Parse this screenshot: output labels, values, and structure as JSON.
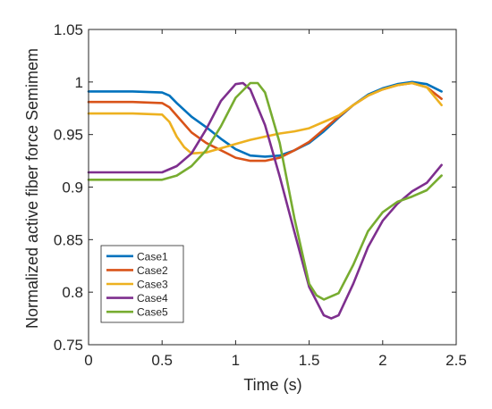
{
  "chart_data": {
    "type": "line",
    "title": "",
    "xlabel": "Time (s)",
    "ylabel": "Normalized active fiber force  Semimem",
    "xlim": [
      0,
      2.5
    ],
    "ylim": [
      0.75,
      1.05
    ],
    "xticks": [
      "0",
      "0.5",
      "1",
      "1.5",
      "2",
      "2.5"
    ],
    "yticks": [
      "0.75",
      "0.8",
      "0.85",
      "0.9",
      "0.95",
      "1",
      "1.05"
    ],
    "grid": false,
    "legend_position": "bottom-left",
    "series": [
      {
        "name": "Case1",
        "color": "#0072BD",
        "x": [
          0,
          0.3,
          0.5,
          0.55,
          0.6,
          0.7,
          0.8,
          0.9,
          1.0,
          1.1,
          1.2,
          1.3,
          1.4,
          1.5,
          1.6,
          1.7,
          1.8,
          1.9,
          2.0,
          2.1,
          2.2,
          2.3,
          2.4
        ],
        "y": [
          0.991,
          0.991,
          0.99,
          0.987,
          0.98,
          0.967,
          0.957,
          0.946,
          0.936,
          0.93,
          0.929,
          0.93,
          0.935,
          0.942,
          0.953,
          0.966,
          0.978,
          0.988,
          0.994,
          0.998,
          1.0,
          0.998,
          0.991
        ]
      },
      {
        "name": "Case2",
        "color": "#D95319",
        "x": [
          0,
          0.3,
          0.5,
          0.55,
          0.6,
          0.7,
          0.8,
          0.9,
          1.0,
          1.1,
          1.2,
          1.3,
          1.4,
          1.5,
          1.6,
          1.7,
          1.8,
          1.9,
          2.0,
          2.1,
          2.2,
          2.3,
          2.4
        ],
        "y": [
          0.981,
          0.981,
          0.98,
          0.976,
          0.968,
          0.952,
          0.942,
          0.935,
          0.928,
          0.925,
          0.925,
          0.928,
          0.935,
          0.943,
          0.955,
          0.967,
          0.978,
          0.987,
          0.993,
          0.997,
          0.999,
          0.995,
          0.984
        ]
      },
      {
        "name": "Case3",
        "color": "#EDB120",
        "x": [
          0,
          0.3,
          0.5,
          0.55,
          0.6,
          0.65,
          0.7,
          0.8,
          0.9,
          1.0,
          1.1,
          1.2,
          1.3,
          1.4,
          1.5,
          1.6,
          1.7,
          1.8,
          1.9,
          2.0,
          2.1,
          2.2,
          2.3,
          2.4
        ],
        "y": [
          0.97,
          0.97,
          0.969,
          0.962,
          0.948,
          0.938,
          0.932,
          0.933,
          0.937,
          0.941,
          0.945,
          0.948,
          0.951,
          0.953,
          0.956,
          0.962,
          0.968,
          0.978,
          0.987,
          0.993,
          0.997,
          0.999,
          0.995,
          0.978
        ]
      },
      {
        "name": "Case4",
        "color": "#7E2F8E",
        "x": [
          0,
          0.3,
          0.5,
          0.6,
          0.7,
          0.8,
          0.9,
          1.0,
          1.05,
          1.1,
          1.2,
          1.3,
          1.4,
          1.5,
          1.6,
          1.65,
          1.7,
          1.8,
          1.9,
          2.0,
          2.1,
          2.2,
          2.3,
          2.4
        ],
        "y": [
          0.914,
          0.914,
          0.914,
          0.92,
          0.932,
          0.955,
          0.982,
          0.998,
          0.999,
          0.993,
          0.959,
          0.91,
          0.857,
          0.805,
          0.778,
          0.775,
          0.778,
          0.808,
          0.843,
          0.868,
          0.884,
          0.896,
          0.904,
          0.921
        ]
      },
      {
        "name": "Case5",
        "color": "#77AC30",
        "x": [
          0,
          0.3,
          0.5,
          0.6,
          0.7,
          0.8,
          0.9,
          1.0,
          1.1,
          1.15,
          1.2,
          1.3,
          1.4,
          1.5,
          1.55,
          1.6,
          1.7,
          1.8,
          1.9,
          2.0,
          2.1,
          2.2,
          2.3,
          2.4
        ],
        "y": [
          0.907,
          0.907,
          0.907,
          0.911,
          0.92,
          0.935,
          0.958,
          0.985,
          0.999,
          0.999,
          0.99,
          0.942,
          0.87,
          0.808,
          0.797,
          0.793,
          0.799,
          0.826,
          0.858,
          0.876,
          0.886,
          0.891,
          0.897,
          0.911
        ]
      }
    ]
  }
}
